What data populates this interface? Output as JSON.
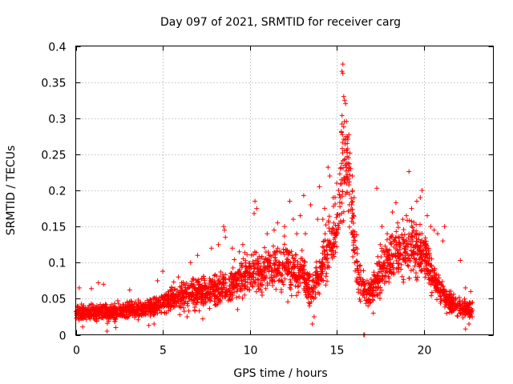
{
  "chart_data": {
    "type": "scatter",
    "title": "Day 097 of 2021, SRMTID for receiver carg",
    "xlabel": "GPS time / hours",
    "ylabel": "SRMTID / TECUs",
    "xlim": [
      0,
      24
    ],
    "ylim": [
      0,
      0.4
    ],
    "xticks": [
      0,
      5,
      10,
      15,
      20
    ],
    "xtick_labels": [
      "0",
      "5",
      "10",
      "15",
      "20"
    ],
    "yticks": [
      0,
      0.05,
      0.1,
      0.15,
      0.2,
      0.25,
      0.3,
      0.35,
      0.4
    ],
    "ytick_labels": [
      "0",
      "0.05",
      "0.1",
      "0.15",
      "0.2",
      "0.25",
      "0.3",
      "0.35",
      "0.4"
    ],
    "grid": true,
    "marker": "+",
    "color": "#ff0000",
    "series": [
      {
        "name": "SRMTID",
        "trend": {
          "x": [
            0,
            1,
            2,
            3,
            4,
            5,
            6,
            7,
            8,
            9,
            10,
            11,
            12,
            13,
            13.5,
            14,
            14.5,
            15,
            15.3,
            15.5,
            15.8,
            16,
            16.3,
            16.7,
            17,
            17.5,
            18,
            19,
            19.5,
            20,
            20.5,
            21,
            21.5,
            22,
            22.5,
            22.8
          ],
          "y": [
            0.03,
            0.032,
            0.03,
            0.035,
            0.035,
            0.045,
            0.052,
            0.058,
            0.062,
            0.07,
            0.085,
            0.09,
            0.095,
            0.085,
            0.06,
            0.08,
            0.12,
            0.15,
            0.22,
            0.24,
            0.2,
            0.12,
            0.075,
            0.055,
            0.065,
            0.085,
            0.11,
            0.115,
            0.125,
            0.11,
            0.085,
            0.06,
            0.045,
            0.04,
            0.035,
            0.035
          ]
        },
        "points": [
          [
            15.35,
            0.375
          ],
          [
            15.3,
            0.365
          ],
          [
            15.35,
            0.362
          ],
          [
            15.4,
            0.33
          ],
          [
            15.45,
            0.325
          ],
          [
            15.3,
            0.292
          ],
          [
            15.4,
            0.288
          ],
          [
            15.5,
            0.27
          ],
          [
            15.6,
            0.265
          ],
          [
            15.45,
            0.255
          ],
          [
            15.7,
            0.232
          ],
          [
            15.8,
            0.23
          ],
          [
            15.5,
            0.235
          ],
          [
            15.6,
            0.222
          ],
          [
            15.9,
            0.22
          ],
          [
            14.5,
            0.232
          ],
          [
            14.6,
            0.22
          ],
          [
            15.0,
            0.21
          ],
          [
            15.1,
            0.2
          ],
          [
            15.9,
            0.2
          ],
          [
            16.0,
            0.19
          ],
          [
            15.85,
            0.18
          ],
          [
            14.3,
            0.175
          ],
          [
            14.8,
            0.19
          ],
          [
            14.0,
            0.205
          ],
          [
            13.1,
            0.193
          ],
          [
            13.5,
            0.18
          ],
          [
            12.3,
            0.185
          ],
          [
            12.5,
            0.16
          ],
          [
            12.9,
            0.165
          ],
          [
            10.3,
            0.185
          ],
          [
            10.4,
            0.175
          ],
          [
            10.25,
            0.168
          ],
          [
            8.5,
            0.15
          ],
          [
            8.55,
            0.145
          ],
          [
            8.6,
            0.135
          ],
          [
            17.3,
            0.203
          ],
          [
            18.4,
            0.183
          ],
          [
            19.15,
            0.226
          ],
          [
            19.9,
            0.2
          ],
          [
            19.6,
            0.185
          ],
          [
            19.3,
            0.175
          ],
          [
            19.0,
            0.165
          ],
          [
            18.8,
            0.16
          ],
          [
            20.4,
            0.15
          ],
          [
            20.6,
            0.145
          ],
          [
            20.8,
            0.14
          ],
          [
            21.1,
            0.13
          ],
          [
            21.2,
            0.15
          ],
          [
            22.1,
            0.103
          ],
          [
            22.4,
            0.065
          ],
          [
            22.5,
            0.04
          ],
          [
            22.4,
            0.008
          ],
          [
            22.6,
            0.015
          ],
          [
            22.7,
            0.06
          ],
          [
            16.55,
            0.0
          ],
          [
            16.6,
            0.0
          ],
          [
            17.1,
            0.03
          ],
          [
            16.8,
            0.04
          ],
          [
            16.9,
            0.045
          ],
          [
            13.6,
            0.015
          ],
          [
            13.7,
            0.025
          ],
          [
            4.2,
            0.013
          ],
          [
            4.5,
            0.015
          ],
          [
            1.8,
            0.005
          ],
          [
            2.3,
            0.01
          ],
          [
            0.4,
            0.011
          ],
          [
            7.3,
            0.022
          ],
          [
            6.4,
            0.025
          ],
          [
            9.3,
            0.035
          ],
          [
            4.7,
            0.075
          ],
          [
            5.0,
            0.088
          ],
          [
            5.9,
            0.08
          ],
          [
            6.6,
            0.1
          ],
          [
            7.0,
            0.11
          ],
          [
            7.8,
            0.12
          ],
          [
            8.2,
            0.125
          ],
          [
            9.0,
            0.12
          ],
          [
            9.4,
            0.115
          ],
          [
            9.6,
            0.125
          ],
          [
            11.0,
            0.14
          ],
          [
            11.4,
            0.145
          ],
          [
            11.6,
            0.155
          ],
          [
            12.0,
            0.15
          ],
          [
            12.7,
            0.14
          ],
          [
            13.2,
            0.14
          ],
          [
            13.9,
            0.16
          ],
          [
            14.2,
            0.16
          ],
          [
            17.5,
            0.125
          ],
          [
            17.6,
            0.15
          ],
          [
            17.9,
            0.14
          ],
          [
            18.2,
            0.17
          ],
          [
            18.5,
            0.155
          ],
          [
            19.8,
            0.19
          ],
          [
            20.2,
            0.165
          ],
          [
            1.3,
            0.072
          ],
          [
            0.9,
            0.064
          ],
          [
            1.6,
            0.07
          ],
          [
            0.2,
            0.065
          ],
          [
            3.1,
            0.062
          ]
        ]
      }
    ]
  }
}
